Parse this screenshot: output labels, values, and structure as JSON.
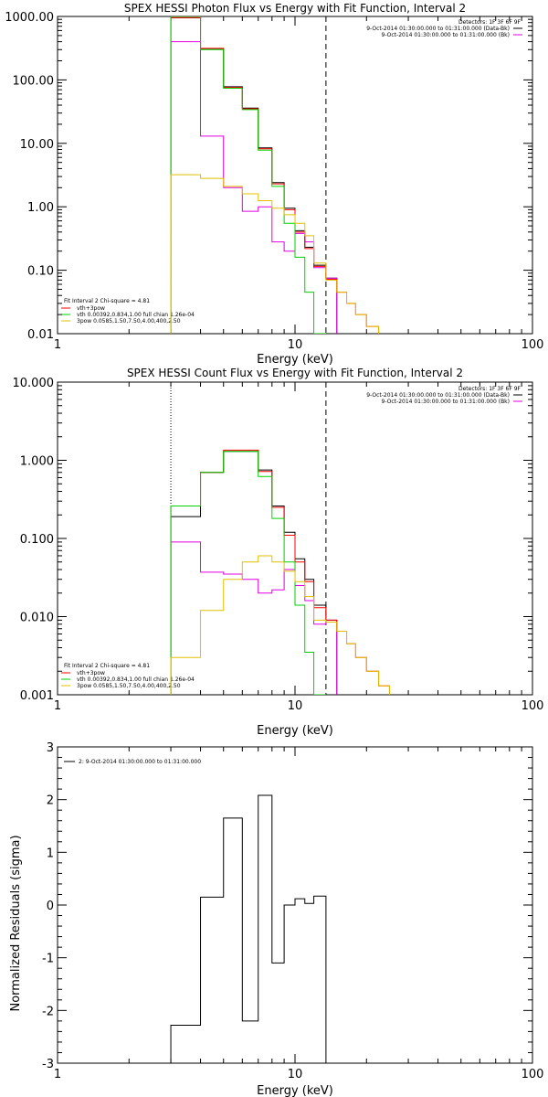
{
  "chart_data": [
    {
      "type": "line",
      "title": "SPEX HESSI Photon Flux vs Energy with Fit Function, Interval 2",
      "xlabel": "Energy (keV)",
      "ylabel": "",
      "xscale": "log",
      "yscale": "log",
      "xlim": [
        1,
        100
      ],
      "ylim": [
        0.01,
        1000
      ],
      "x_ticks": [
        1,
        10,
        100
      ],
      "x_tick_labels": [
        "1",
        "10",
        "100"
      ],
      "y_ticks": [
        0.01,
        0.1,
        1,
        10,
        100,
        1000
      ],
      "y_tick_labels": [
        "0.01",
        "0.10",
        "1.00",
        "10.00",
        "100.00",
        "1000.00"
      ],
      "vlines": [
        {
          "x": 3.0,
          "style": "dotted",
          "color": "#000000"
        },
        {
          "x": 13.5,
          "style": "dashed",
          "color": "#000000"
        }
      ],
      "info_lines": [
        "Detectors: 1F 3F 6F 9F",
        "9-Oct-2014 01:30:00.000 to 01:31:00.000 (Data-Bk)",
        "9-Oct-2014 01:30:00.000 to 01:31:00.000 (Bk)"
      ],
      "info_swatches": [
        "#000000",
        "#e000e0"
      ],
      "fit_legend": [
        {
          "text": "Fit Interval 2   Chi-square = 4.81",
          "color": ""
        },
        {
          "text": "vth+3pow",
          "color": "#ff0000"
        },
        {
          "text": "vth 0.00392,0.834,1.00  full chian 1.26e-04",
          "color": "#00d000"
        },
        {
          "text": "3pow 0.0585,1.50,7.50,4.00,400,2.50",
          "color": "#e0c000"
        }
      ],
      "edges": [
        3.0,
        4.0,
        5.0,
        6.0,
        7.0,
        8.0,
        9.0,
        10.0,
        11.0,
        12.0,
        13.5,
        15.0,
        16.5,
        18.0,
        20.0,
        22.5
      ],
      "series": [
        {
          "color": "#000000",
          "values": [
            950,
            310,
            78,
            36,
            8.5,
            2.4,
            0.95,
            0.42,
            0.23,
            0.12,
            0.075,
            null,
            null,
            null,
            null
          ]
        },
        {
          "color": "#e000e0",
          "values": [
            400,
            13,
            2.0,
            0.85,
            1.0,
            0.28,
            0.2,
            0.38,
            0.28,
            0.11,
            0.075,
            null,
            null,
            null,
            null
          ]
        },
        {
          "color": "#ff0000",
          "values": [
            960,
            315,
            76,
            35,
            8.2,
            2.3,
            0.9,
            0.4,
            0.22,
            0.115,
            0.072,
            0.045,
            0.03,
            0.02,
            0.013
          ]
        },
        {
          "color": "#00d000",
          "values": [
            1100,
            300,
            74,
            34,
            7.8,
            2.1,
            0.55,
            0.16,
            0.045,
            0.003,
            null,
            null,
            null,
            null,
            null
          ]
        },
        {
          "color": "#e0c000",
          "values": [
            3.2,
            2.8,
            2.1,
            1.6,
            1.25,
            0.95,
            0.75,
            0.55,
            0.35,
            0.13,
            0.07,
            0.045,
            0.03,
            0.02,
            0.013
          ]
        }
      ]
    },
    {
      "type": "line",
      "title": "SPEX HESSI Count Flux vs Energy with Fit Function, Interval 2",
      "xlabel": "Energy (keV)",
      "ylabel": "",
      "xscale": "log",
      "yscale": "log",
      "xlim": [
        1,
        100
      ],
      "ylim": [
        0.001,
        10
      ],
      "x_ticks": [
        1,
        10,
        100
      ],
      "x_tick_labels": [
        "1",
        "10",
        "100"
      ],
      "y_ticks": [
        0.001,
        0.01,
        0.1,
        1,
        10
      ],
      "y_tick_labels": [
        "0.001",
        "0.010",
        "0.100",
        "1.000",
        "10.000"
      ],
      "vlines": [
        {
          "x": 3.0,
          "style": "dotted",
          "color": "#000000"
        },
        {
          "x": 13.5,
          "style": "dashed",
          "color": "#000000"
        }
      ],
      "info_lines": [
        "Detectors: 1F 3F 6F 9F",
        "9-Oct-2014 01:30:00.000 to 01:31:00.000 (Data-Bk)",
        "9-Oct-2014 01:30:00.000 to 01:31:00.000 (Bk)"
      ],
      "info_swatches": [
        "#000000",
        "#e000e0"
      ],
      "fit_legend": [
        {
          "text": "Fit Interval 2   Chi-square = 4.81",
          "color": ""
        },
        {
          "text": "vth+3pow",
          "color": "#ff0000"
        },
        {
          "text": "vth 0.00392,0.834,1.00  full chian 1.26e-04",
          "color": "#00d000"
        },
        {
          "text": "3pow 0.0585,1.50,7.50,4.00,400,2.50",
          "color": "#e0c000"
        }
      ],
      "edges": [
        3.0,
        4.0,
        5.0,
        6.0,
        7.0,
        8.0,
        9.0,
        10.0,
        11.0,
        12.0,
        13.5,
        15.0,
        16.5,
        18.0,
        20.0,
        22.5,
        25.0
      ],
      "series": [
        {
          "color": "#000000",
          "values": [
            0.19,
            0.7,
            1.3,
            1.3,
            0.75,
            0.26,
            0.12,
            0.055,
            0.03,
            0.014,
            0.009,
            null,
            null,
            null,
            null,
            null
          ]
        },
        {
          "color": "#e000e0",
          "values": [
            0.09,
            0.037,
            0.035,
            0.03,
            0.02,
            0.022,
            0.04,
            0.025,
            0.016,
            0.008,
            0.0085,
            null,
            null,
            null,
            null,
            null
          ]
        },
        {
          "color": "#ff0000",
          "values": [
            0.26,
            0.7,
            1.35,
            1.35,
            0.72,
            0.25,
            0.11,
            0.05,
            0.028,
            0.013,
            0.009,
            0.0065,
            0.0045,
            0.003,
            0.002,
            0.0013
          ]
        },
        {
          "color": "#00d000",
          "values": [
            0.26,
            0.7,
            1.3,
            1.3,
            0.62,
            0.18,
            0.05,
            0.014,
            0.0035,
            0.0009,
            null,
            null,
            null,
            null,
            null,
            null
          ]
        },
        {
          "color": "#e0c000",
          "values": [
            0.003,
            0.012,
            0.03,
            0.05,
            0.06,
            0.05,
            0.038,
            0.028,
            0.018,
            0.009,
            0.0085,
            0.0065,
            0.0045,
            0.003,
            0.002,
            0.0013
          ]
        }
      ]
    },
    {
      "type": "line",
      "title": "",
      "xlabel": "Energy (keV)",
      "ylabel": "Normalized Residuals (sigma)",
      "xscale": "log",
      "yscale": "linear",
      "xlim": [
        1,
        100
      ],
      "ylim": [
        -3,
        3
      ],
      "x_ticks": [
        1,
        10,
        100
      ],
      "x_tick_labels": [
        "1",
        "10",
        "100"
      ],
      "y_ticks": [
        -3,
        -2,
        -1,
        0,
        1,
        2,
        3
      ],
      "y_tick_labels": [
        "-3",
        "-2",
        "-1",
        "0",
        "1",
        "2",
        "3"
      ],
      "legend": [
        {
          "text": "2:  9-Oct-2014 01:30:00.000 to 01:31:00.000",
          "color": "#000000"
        }
      ],
      "edges": [
        3.0,
        4.0,
        5.0,
        6.0,
        7.0,
        8.0,
        9.0,
        10.0,
        11.0,
        12.0,
        13.5
      ],
      "series": [
        {
          "color": "#000000",
          "values": [
            -2.28,
            0.15,
            1.65,
            -2.2,
            2.08,
            -1.1,
            0.0,
            0.12,
            0.03,
            0.17
          ]
        }
      ]
    }
  ]
}
